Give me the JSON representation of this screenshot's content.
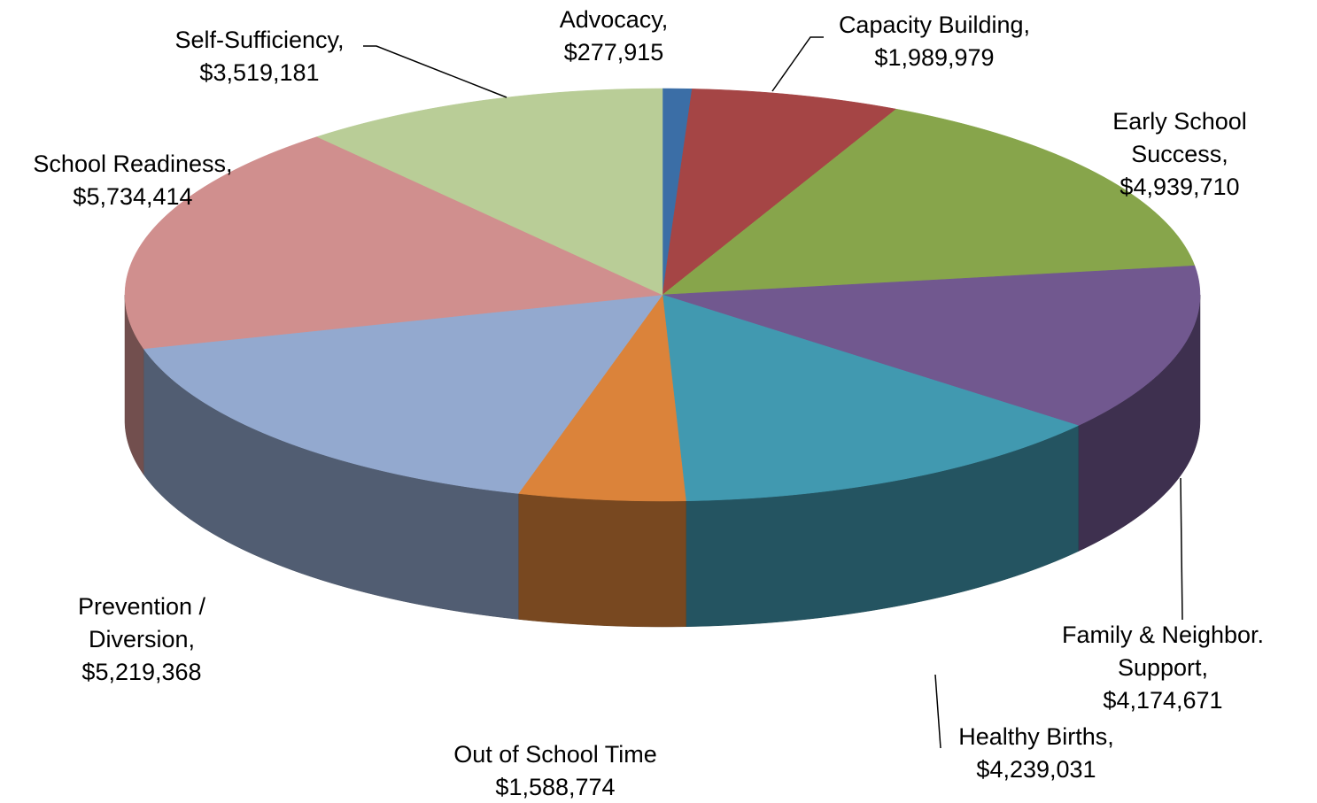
{
  "chart_data": {
    "type": "pie3d",
    "categories": [
      "Advocacy,",
      "Capacity Building,",
      "Early School Success,",
      "Family & Neighbor. Support,",
      "Healthy Births,",
      "Out of School Time",
      "Prevention / Diversion,",
      "School Readiness,",
      "Self-Sufficiency,"
    ],
    "values": [
      277915,
      1989979,
      4939710,
      4174671,
      4239031,
      1588774,
      5219368,
      5734414,
      3519181
    ],
    "value_labels": [
      "$277,915",
      "$1,989,979",
      "$4,939,710",
      "$4,174,671",
      "$4,239,031",
      "$1,588,774",
      "$5,219,368",
      "$5,734,414",
      "$3,519,181"
    ],
    "colors": [
      "#3b6ea6",
      "#a54545",
      "#87a54b",
      "#71588f",
      "#4199b0",
      "#db833a",
      "#93a9cf",
      "#d08f8e",
      "#b9cd97"
    ]
  }
}
